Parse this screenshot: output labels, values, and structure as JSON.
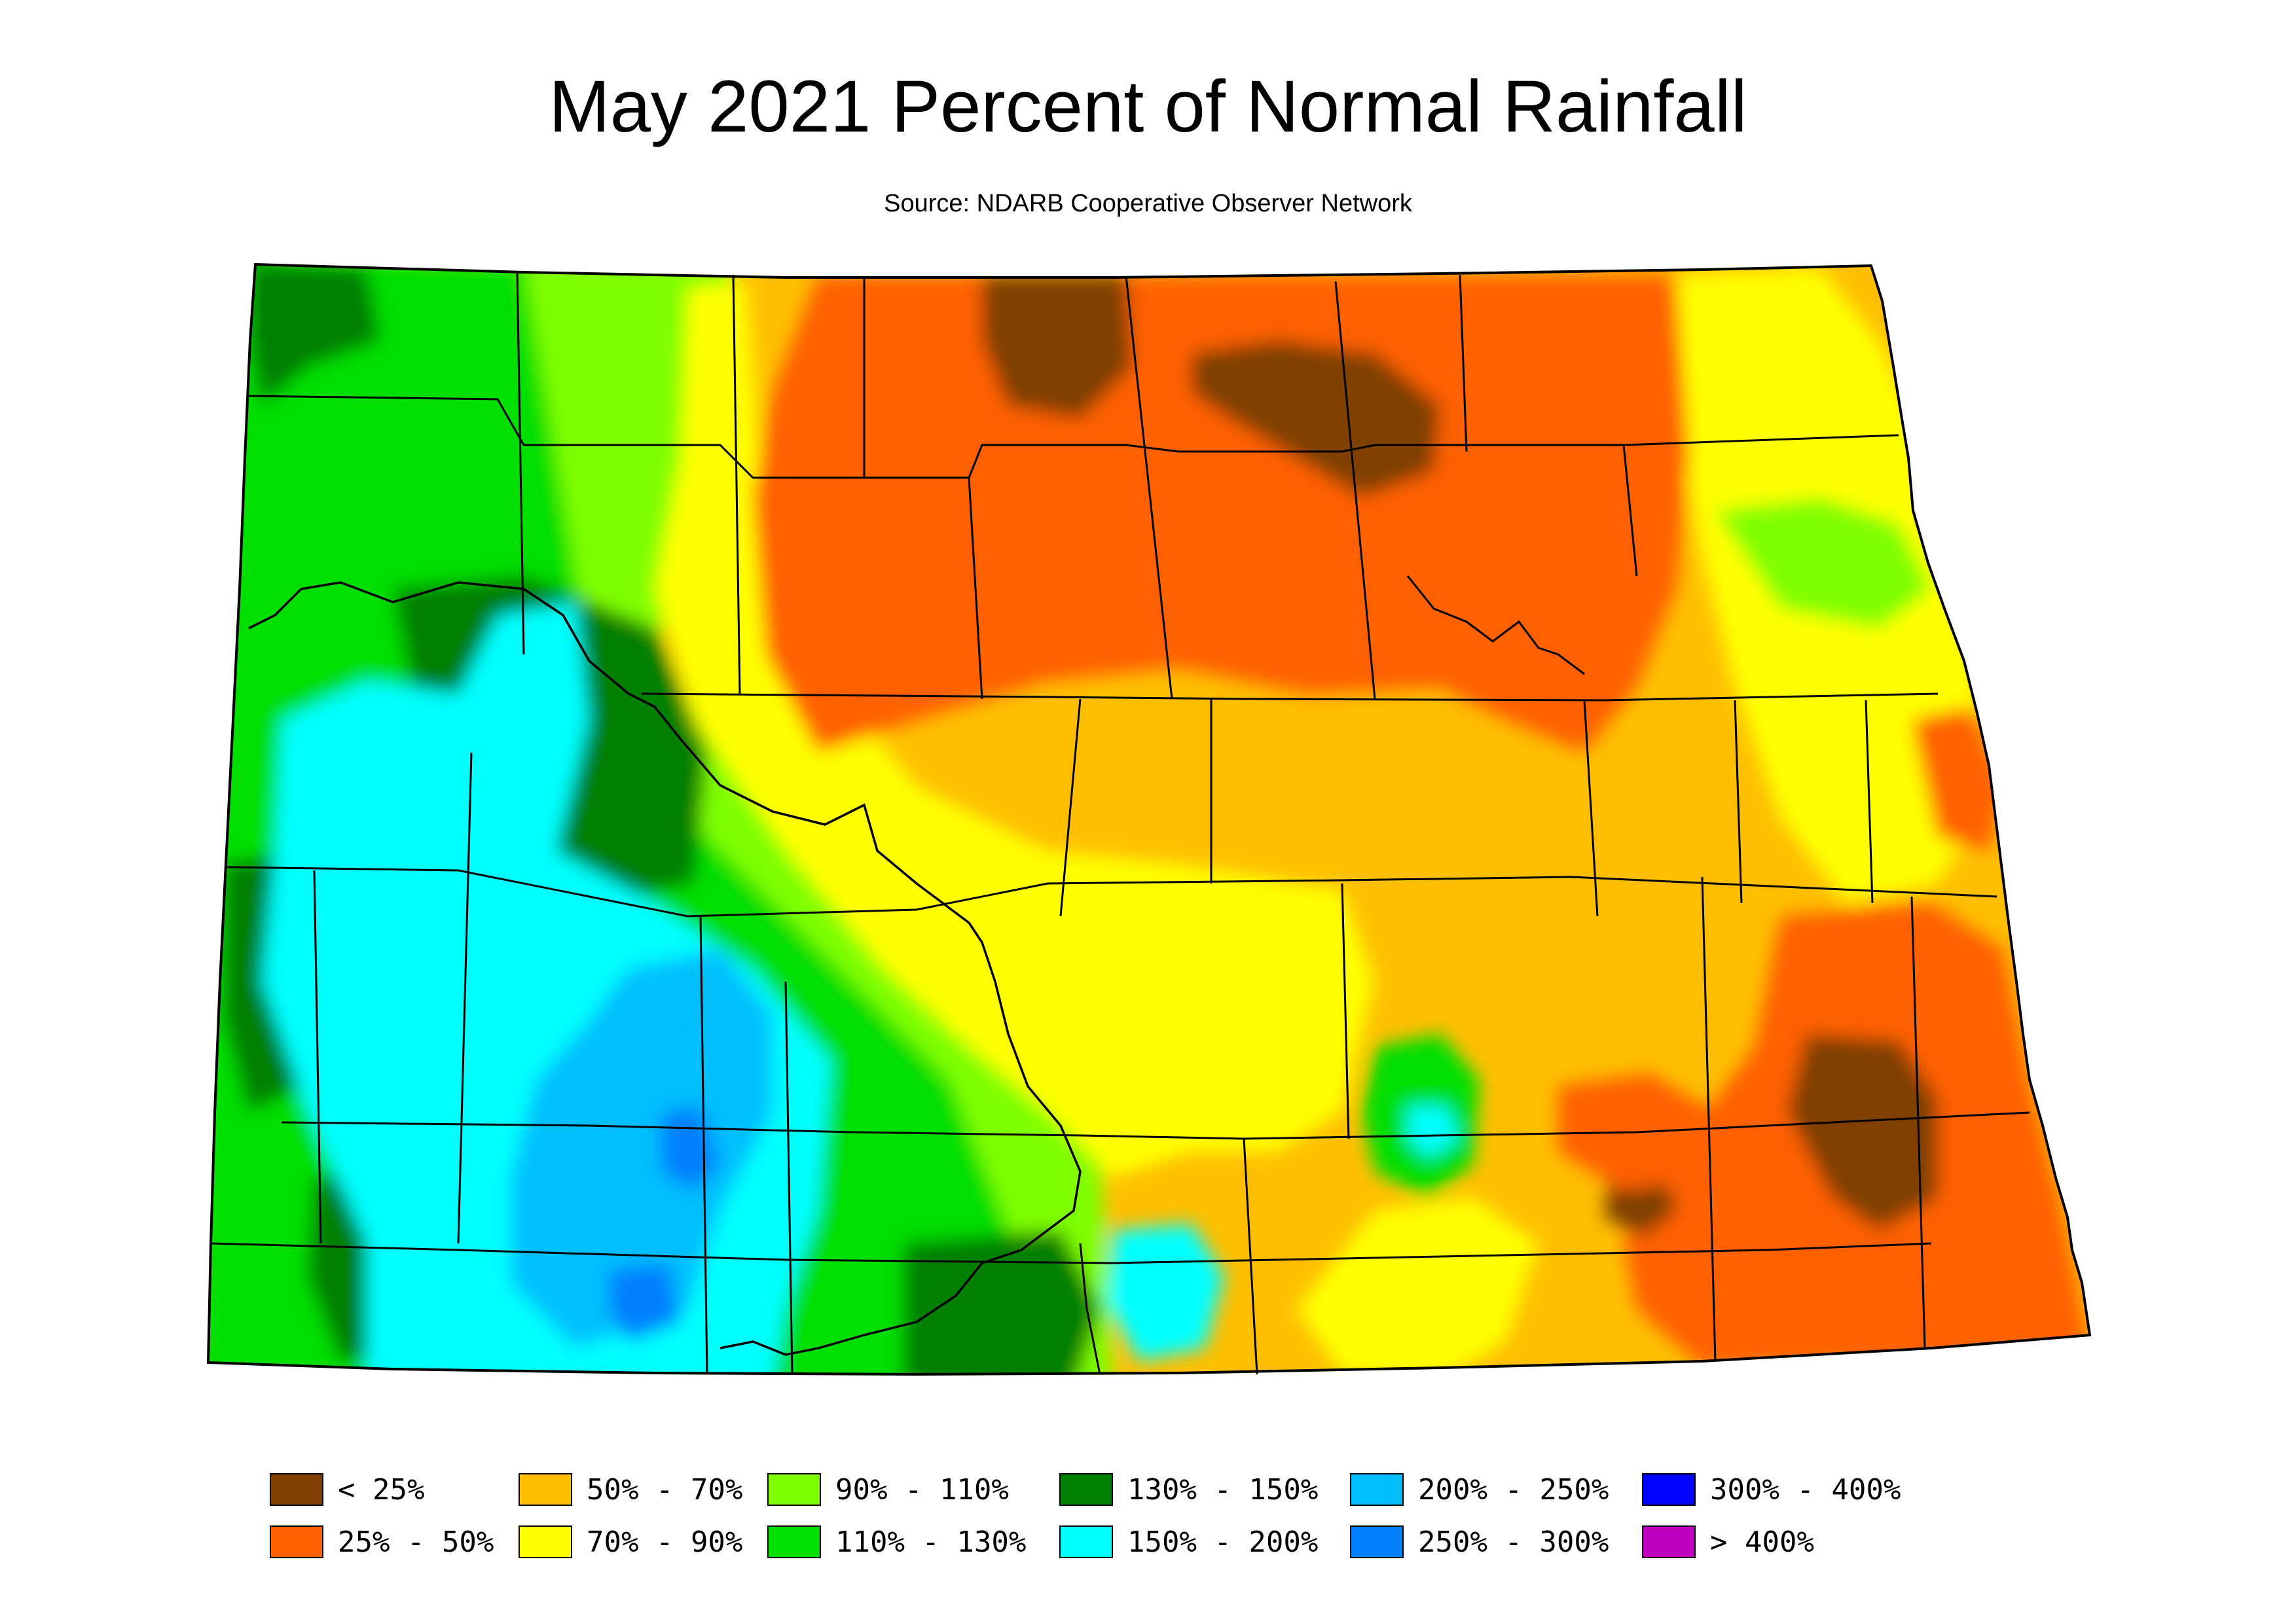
{
  "title": "May 2021 Percent of Normal Rainfall",
  "subtitle": "Source: NDARB Cooperative Observer Network",
  "legend": [
    {
      "label": "< 25%",
      "color": "#7f3f00"
    },
    {
      "label": "25% - 50%",
      "color": "#ff6100"
    },
    {
      "label": "50% - 70%",
      "color": "#ffbf00"
    },
    {
      "label": "70% - 90%",
      "color": "#ffff00"
    },
    {
      "label": "90% - 110%",
      "color": "#7fff00"
    },
    {
      "label": "110% - 130%",
      "color": "#00df00"
    },
    {
      "label": "130% - 150%",
      "color": "#007f00"
    },
    {
      "label": "150% - 200%",
      "color": "#00ffff"
    },
    {
      "label": "200% - 250%",
      "color": "#00bfff"
    },
    {
      "label": "250% - 300%",
      "color": "#007fff"
    },
    {
      "label": "300% - 400%",
      "color": "#0000ff"
    },
    {
      "label": "> 400%",
      "color": "#bf00bf"
    }
  ]
}
